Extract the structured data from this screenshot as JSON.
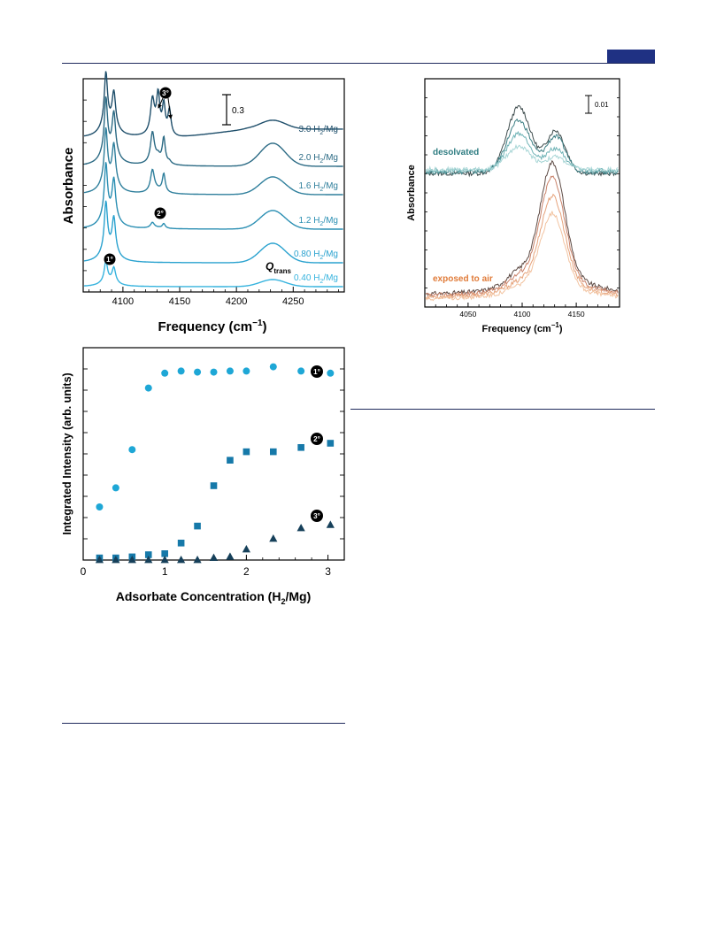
{
  "header": {
    "accent": "#1f3183"
  },
  "charts": {
    "a": {
      "type": "line",
      "ylabel": "Absorbance",
      "xlabel": "Frequency (cm",
      "xlabel_sup": "−1",
      "xlabel_close": ")",
      "xlim": [
        4065,
        4295
      ],
      "xticks": [
        4100,
        4150,
        4200,
        4250
      ],
      "scalebar": "0.3",
      "series": [
        {
          "name": "3.0 H",
          "sub": "2",
          "unit": "/Mg",
          "color": "#1f4f6b"
        },
        {
          "name": "2.0 H",
          "sub": "2",
          "unit": "/Mg",
          "color": "#2b6a84"
        },
        {
          "name": "1.6 H",
          "sub": "2",
          "unit": "/Mg",
          "color": "#2f7f9c"
        },
        {
          "name": "1.2 H",
          "sub": "2",
          "unit": "/Mg",
          "color": "#2b8fb3"
        },
        {
          "name": "0.80 H",
          "sub": "2",
          "unit": "/Mg",
          "color": "#2aa2cf"
        },
        {
          "name": "0.40 H",
          "sub": "2",
          "unit": "/Mg",
          "color": "#36b3de"
        }
      ],
      "annotations": {
        "site1": "1°",
        "site2": "2°",
        "site3": "3°",
        "q": "Q",
        "q_sub": "trans"
      }
    },
    "b": {
      "type": "line",
      "ylabel": "Absorbance",
      "xlabel": "Frequency (cm",
      "xlabel_sup": "−1",
      "xlabel_close": ")",
      "xlim": [
        4010,
        4190
      ],
      "xticks": [
        4050,
        4100,
        4150
      ],
      "scalebar": "0.01",
      "group1": {
        "label": "desolvated",
        "color": "#2f7d82"
      },
      "group2": {
        "label": "exposed to air",
        "color": "#e07b39"
      }
    },
    "c": {
      "type": "scatter",
      "ylabel": "Integrated Intensity (arb. units)",
      "xlabel": "Adsorbate Concentration (H",
      "xlabel_sub": "2",
      "xlabel_close": "/Mg)",
      "xlim": [
        0,
        3.2
      ],
      "ylim": [
        0,
        1
      ],
      "xticks": [
        0,
        1,
        2,
        3
      ],
      "series": [
        {
          "name": "1°",
          "marker": "circle",
          "color": "#1ea7d6",
          "x": [
            0.2,
            0.4,
            0.6,
            0.8,
            1.0,
            1.2,
            1.4,
            1.6,
            1.8,
            2.0,
            2.33,
            2.67,
            3.03
          ],
          "y": [
            0.25,
            0.34,
            0.52,
            0.81,
            0.88,
            0.89,
            0.885,
            0.885,
            0.89,
            0.89,
            0.91,
            0.89,
            0.88
          ]
        },
        {
          "name": "2°",
          "marker": "square",
          "color": "#1679a9",
          "x": [
            0.2,
            0.4,
            0.6,
            0.8,
            1.0,
            1.2,
            1.4,
            1.6,
            1.8,
            2.0,
            2.33,
            2.67,
            3.03
          ],
          "y": [
            0.01,
            0.01,
            0.015,
            0.025,
            0.03,
            0.08,
            0.16,
            0.35,
            0.47,
            0.51,
            0.51,
            0.53,
            0.55
          ]
        },
        {
          "name": "3°",
          "marker": "triangle",
          "color": "#16405a",
          "x": [
            0.2,
            0.4,
            0.6,
            0.8,
            1.0,
            1.2,
            1.4,
            1.6,
            1.8,
            2.0,
            2.33,
            2.67,
            3.03
          ],
          "y": [
            0.0,
            0.0,
            0.0,
            0.0,
            0.0,
            0.0,
            0.0,
            0.01,
            0.015,
            0.05,
            0.1,
            0.15,
            0.165
          ]
        }
      ]
    }
  }
}
